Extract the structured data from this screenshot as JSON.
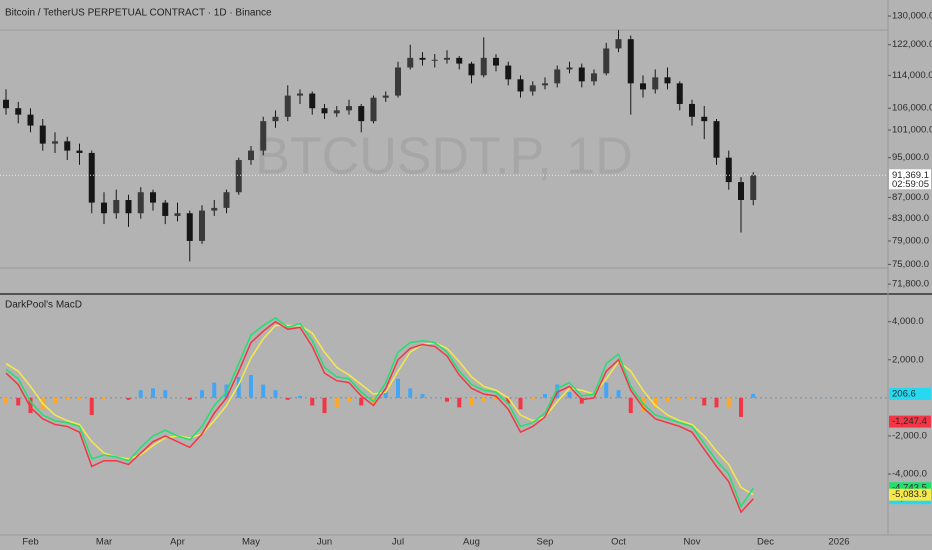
{
  "header": {
    "title": "Bitcoin / TetherUS PERPETUAL CONTRACT · 1D · Binance",
    "watermark": "BTCUSDT.P, 1D"
  },
  "x_axis": {
    "categories": [
      null,
      null,
      "Feb",
      null,
      null,
      null,
      null,
      null,
      "Mar",
      null,
      null,
      null,
      null,
      null,
      "Apr",
      null,
      null,
      null,
      null,
      null,
      "May",
      null,
      null,
      null,
      null,
      null,
      "Jun",
      null,
      null,
      null,
      null,
      null,
      "Jul",
      null,
      null,
      null,
      null,
      null,
      "Aug",
      null,
      null,
      null,
      null,
      null,
      "Sep",
      null,
      null,
      null,
      null,
      null,
      "Oct",
      null,
      null,
      null,
      null,
      null,
      "Nov",
      null,
      null,
      null,
      null,
      null,
      "Dec",
      null,
      null,
      null,
      null,
      null,
      "2026",
      null
    ]
  },
  "chart_data": [
    {
      "type": "candlestick",
      "log_scale": true,
      "color": "#161616",
      "ylim": [
        70400,
        134700
      ],
      "yticks": [
        {
          "value": 130000,
          "label": "130,000.0"
        },
        {
          "value": 122000,
          "label": "122,000.0"
        },
        {
          "value": 114000,
          "label": "114,000.0"
        },
        {
          "value": 106000,
          "label": "106,000.0"
        },
        {
          "value": 101000,
          "label": "101,000.0"
        },
        {
          "value": 95000,
          "label": "95,000.0"
        },
        {
          "value": 87000,
          "label": "87,000.0"
        },
        {
          "value": 83000,
          "label": "83,000.0"
        },
        {
          "value": 79000,
          "label": "79,000.0"
        },
        {
          "value": 75000,
          "label": "75,000.0"
        },
        {
          "value": 71800,
          "label": "71,800.0"
        }
      ],
      "last_price": {
        "value": 91369.1,
        "label": "91,369.1",
        "countdown": "02:59:05"
      },
      "open": [
        108000,
        106000,
        104500,
        102000,
        98000,
        98500,
        96500,
        96000,
        86000,
        84000,
        86500,
        84000,
        88000,
        86000,
        83500,
        84000,
        79000,
        84500,
        85000,
        88000,
        94500,
        96500,
        103000,
        104000,
        109000,
        109500,
        106000,
        104800,
        105500,
        106500,
        103000,
        108500,
        109000,
        116000,
        118500,
        118000,
        118000,
        118500,
        117000,
        114000,
        118500,
        116500,
        113000,
        110000,
        111500,
        112000,
        115500,
        116000,
        112500,
        114500,
        121000,
        123500,
        112000,
        110500,
        113500,
        112000,
        107000,
        104000,
        103000,
        95000,
        90000,
        86500,
        null,
        null,
        null,
        null,
        null,
        null,
        null,
        null
      ],
      "high": [
        110500,
        107500,
        106000,
        103500,
        100500,
        99500,
        98000,
        96500,
        88000,
        88500,
        87500,
        89000,
        88500,
        86500,
        86000,
        84500,
        85500,
        86500,
        88500,
        95000,
        97500,
        104000,
        105500,
        111500,
        110500,
        110000,
        107000,
        106500,
        108000,
        107000,
        109000,
        110000,
        117500,
        122000,
        120000,
        119500,
        120500,
        119000,
        117500,
        124000,
        119500,
        117500,
        114000,
        112500,
        113500,
        116500,
        117500,
        117000,
        115500,
        122500,
        126000,
        124500,
        114000,
        115500,
        116000,
        112500,
        108000,
        106500,
        103500,
        96500,
        91000,
        92000,
        null,
        null,
        null,
        null,
        null,
        null,
        null,
        null
      ],
      "low": [
        104500,
        102500,
        100500,
        96500,
        96000,
        94500,
        93500,
        84000,
        82000,
        83000,
        81500,
        83000,
        84500,
        82000,
        82500,
        75500,
        78500,
        83500,
        84000,
        87500,
        93500,
        95500,
        101500,
        103000,
        107000,
        104500,
        103500,
        104000,
        104500,
        100500,
        102500,
        107500,
        108500,
        115500,
        116500,
        116000,
        117000,
        115500,
        112000,
        113500,
        115000,
        111500,
        108500,
        109000,
        110500,
        111000,
        114500,
        111000,
        111500,
        114000,
        120000,
        104500,
        108500,
        109500,
        110500,
        105500,
        102000,
        99000,
        93500,
        88500,
        80500,
        85500,
        null,
        null,
        null,
        null,
        null,
        null,
        null,
        null
      ],
      "close": [
        106000,
        104500,
        102000,
        98000,
        98500,
        96500,
        96000,
        86000,
        84000,
        86500,
        84000,
        88000,
        86000,
        83500,
        84000,
        79000,
        84500,
        85000,
        88000,
        94500,
        96500,
        103000,
        104000,
        109000,
        109500,
        106000,
        104800,
        105500,
        106500,
        103000,
        108500,
        109000,
        116000,
        118500,
        118000,
        118000,
        118500,
        117000,
        114000,
        118500,
        116500,
        113000,
        110000,
        111500,
        112000,
        115500,
        116000,
        112500,
        114500,
        121000,
        123500,
        112000,
        110500,
        113500,
        112000,
        107000,
        104000,
        103000,
        95000,
        90000,
        86500,
        91369.1,
        null,
        null,
        null,
        null,
        null,
        null,
        null,
        null
      ]
    },
    {
      "type": "macd",
      "title": "DarkPool's MacD",
      "ylim": [
        -7200,
        5400
      ],
      "yticks": [
        {
          "value": 4000,
          "label": "4,000.0"
        },
        {
          "value": 2000,
          "label": "2,000.0"
        },
        {
          "value": -2000,
          "label": "-2,000.0"
        },
        {
          "value": -4000,
          "label": "-4,000.0"
        }
      ],
      "series": [
        {
          "color": "#20e070",
          "values": [
            1500,
            1000,
            -200,
            -900,
            -1200,
            -1300,
            -1500,
            -3200,
            -3000,
            -3100,
            -3300,
            -2600,
            -2000,
            -1700,
            -2000,
            -2200,
            -1500,
            -400,
            300,
            1800,
            3300,
            3800,
            4200,
            3700,
            3900,
            3000,
            1600,
            1100,
            1000,
            300,
            -200,
            800,
            2400,
            2900,
            3000,
            2900,
            2400,
            1400,
            700,
            400,
            300,
            -300,
            -1500,
            -1300,
            -800,
            500,
            800,
            100,
            200,
            1800,
            2300,
            600,
            -300,
            -900,
            -1100,
            -1300,
            -1500,
            -2400,
            -3300,
            -4000,
            -5700,
            -4743.5,
            null,
            null,
            null,
            null,
            null,
            null,
            null,
            null
          ]
        },
        {
          "color": "#f23645",
          "values": [
            1300,
            700,
            -500,
            -1100,
            -1400,
            -1500,
            -1800,
            -3600,
            -3300,
            -3300,
            -3500,
            -2900,
            -2300,
            -2000,
            -2300,
            -2600,
            -1900,
            -800,
            0,
            1400,
            2900,
            3500,
            4000,
            3600,
            3700,
            2700,
            1300,
            900,
            800,
            100,
            -400,
            500,
            2000,
            2600,
            2800,
            2700,
            2200,
            1200,
            500,
            200,
            100,
            -600,
            -1800,
            -1500,
            -1000,
            300,
            600,
            -100,
            0,
            1400,
            2000,
            400,
            -500,
            -1100,
            -1300,
            -1500,
            -1800,
            -2700,
            -3600,
            -4400,
            -6000,
            -5300,
            null,
            null,
            null,
            null,
            null,
            null,
            null,
            null
          ]
        },
        {
          "color": "#f5e94a",
          "values": [
            1800,
            1400,
            600,
            -300,
            -900,
            -1200,
            -1400,
            -2300,
            -2900,
            -3100,
            -3200,
            -3000,
            -2500,
            -2100,
            -2000,
            -2100,
            -1900,
            -1200,
            -400,
            700,
            2100,
            3100,
            3800,
            3800,
            3800,
            3400,
            2400,
            1600,
            1200,
            700,
            200,
            300,
            1400,
            2400,
            2800,
            2900,
            2600,
            1900,
            1100,
            600,
            400,
            0,
            -900,
            -1200,
            -1000,
            -200,
            500,
            400,
            200,
            1000,
            1900,
            1400,
            400,
            -400,
            -900,
            -1200,
            -1400,
            -2000,
            -2800,
            -3500,
            -4700,
            -5083.9,
            null,
            null,
            null,
            null,
            null,
            null,
            null,
            null
          ]
        }
      ],
      "histogram": {
        "values": [
          -300,
          -400,
          -800,
          -600,
          -300,
          -100,
          -100,
          -900,
          -100,
          0,
          -100,
          400,
          500,
          400,
          0,
          -100,
          400,
          800,
          700,
          1100,
          1200,
          700,
          400,
          -100,
          100,
          -400,
          -800,
          -500,
          -200,
          -400,
          -400,
          500,
          1000,
          500,
          200,
          0,
          -200,
          -500,
          -400,
          -200,
          -100,
          -300,
          -600,
          -100,
          200,
          700,
          300,
          -300,
          0,
          800,
          400,
          -800,
          -700,
          -500,
          -200,
          -100,
          -100,
          -400,
          -500,
          -500,
          -1000,
          206.6,
          null,
          null,
          null,
          null,
          null,
          null,
          null,
          null
        ],
        "colors": [
          "#42a5f5",
          "#f23645",
          "#ffa726"
        ]
      },
      "tags": [
        {
          "value": 206.6,
          "label": "206.6",
          "color": "#26d9f0"
        },
        {
          "value": -1247.4,
          "label": "-1,247.4",
          "color": "#f23645"
        },
        {
          "value": -4743.5,
          "label": "-4,743.5",
          "color": "#20e070"
        },
        {
          "value": -4743.5,
          "label": "-4,743.5",
          "color": "#26d9f0"
        },
        {
          "value": -5083.9,
          "label": "-5,083.9",
          "color": "#f5e94a"
        }
      ]
    }
  ]
}
